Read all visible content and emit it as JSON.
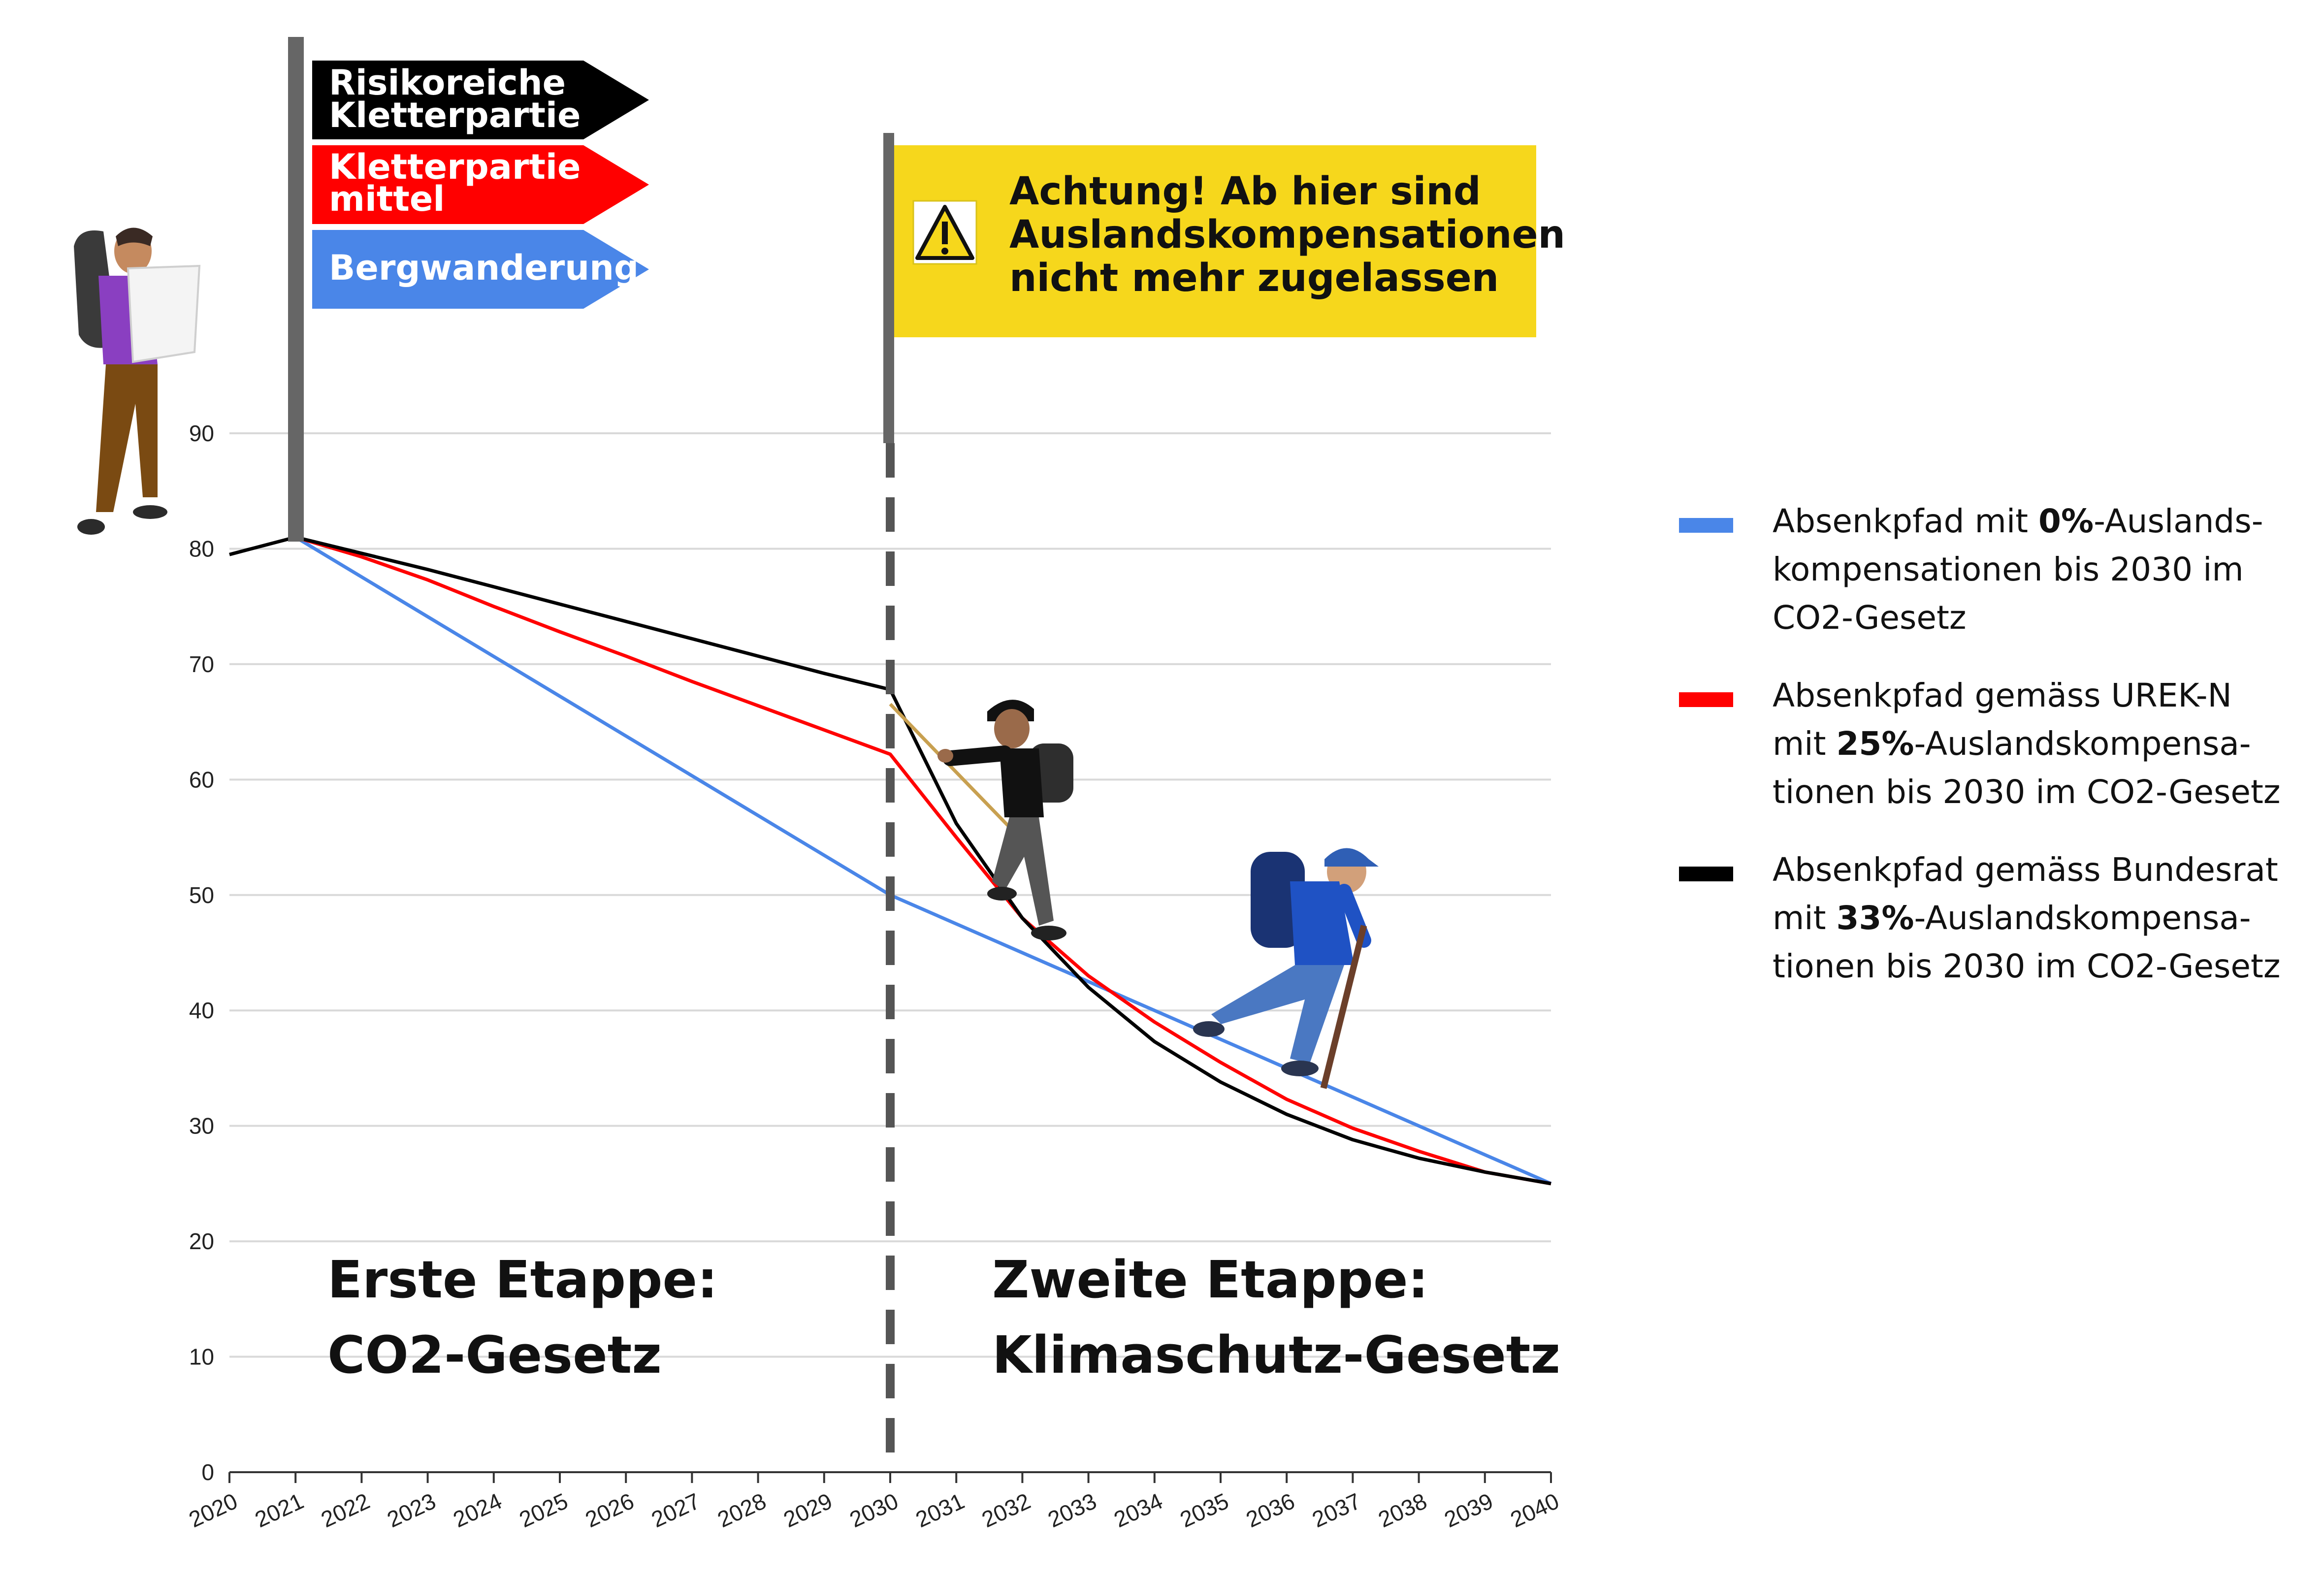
{
  "chart_data": {
    "type": "line",
    "x": [
      2020,
      2021,
      2022,
      2023,
      2024,
      2025,
      2026,
      2027,
      2028,
      2029,
      2030,
      2031,
      2032,
      2033,
      2034,
      2035,
      2036,
      2037,
      2038,
      2039,
      2040
    ],
    "y_ticks": [
      0,
      10,
      20,
      30,
      40,
      50,
      60,
      70,
      80,
      90
    ],
    "ylim": [
      0,
      90
    ],
    "grid": true,
    "legend_position": "right",
    "series": [
      {
        "color": "#4a86e8",
        "x": [
          2021,
          2030,
          2040
        ],
        "values": [
          81,
          50,
          25
        ],
        "legend_pre": "Absenkpfad mit ",
        "legend_bold": "0%",
        "legend_post": "-Auslands-",
        "legend_line2": "kompensationen bis 2030 im",
        "legend_line3": "CO2-Gesetz"
      },
      {
        "color": "#ff0000",
        "x": [
          2021,
          2022,
          2023,
          2024,
          2025,
          2026,
          2027,
          2028,
          2029,
          2030,
          2031,
          2032,
          2033,
          2034,
          2035,
          2036,
          2037,
          2038,
          2039,
          2040
        ],
        "values": [
          81,
          79.3,
          77.3,
          75.0,
          72.8,
          70.7,
          68.5,
          66.4,
          64.3,
          62.2,
          55.0,
          48.0,
          43.0,
          39.0,
          35.5,
          32.3,
          29.8,
          27.8,
          26.0,
          25.0
        ],
        "legend_line1": "Absenkpfad gemäss UREK-N",
        "legend_pre": "mit ",
        "legend_bold": "25%",
        "legend_post": "-Auslandskompensa-",
        "legend_line3": "tionen bis 2030 im CO2-Gesetz"
      },
      {
        "color": "#000000",
        "x": [
          2020,
          2021,
          2022,
          2023,
          2024,
          2025,
          2026,
          2027,
          2028,
          2029,
          2030,
          2031,
          2032,
          2033,
          2034,
          2035,
          2036,
          2037,
          2038,
          2039,
          2040
        ],
        "values": [
          79.5,
          81,
          79.6,
          78.2,
          76.7,
          75.2,
          73.7,
          72.2,
          70.7,
          69.2,
          67.8,
          56.2,
          48.0,
          42.0,
          37.3,
          33.8,
          31.0,
          28.8,
          27.2,
          26.0,
          25.0
        ],
        "legend_line1": "Absenkpfad gemäss Bundesrat",
        "legend_pre": "mit ",
        "legend_bold": "33%",
        "legend_post": "-Auslandskompensa-",
        "legend_line3": "tionen bis 2030 im CO2-Gesetz"
      }
    ],
    "annotations": {
      "stage1_line1": "Erste Etappe:",
      "stage1_line2": "CO2-Gesetz",
      "stage2_line1": "Zweite Etappe:",
      "stage2_line2": "Klimaschutz-Gesetz",
      "sign_black_line1": "Risikoreiche",
      "sign_black_line2": "Kletterpartie",
      "sign_red_line1": "Kletterpartie",
      "sign_red_line2": "mittel",
      "sign_blue": "Bergwanderung",
      "warning_line1": "Achtung! Ab hier sind",
      "warning_line2": "Auslandskompensationen",
      "warning_line3": "nicht mehr zugelassen"
    },
    "colors": {
      "blue": "#4a86e8",
      "red": "#ff0000",
      "black": "#000000",
      "warning_yellow": "#f6d71c",
      "pole_gray": "#666666"
    }
  }
}
